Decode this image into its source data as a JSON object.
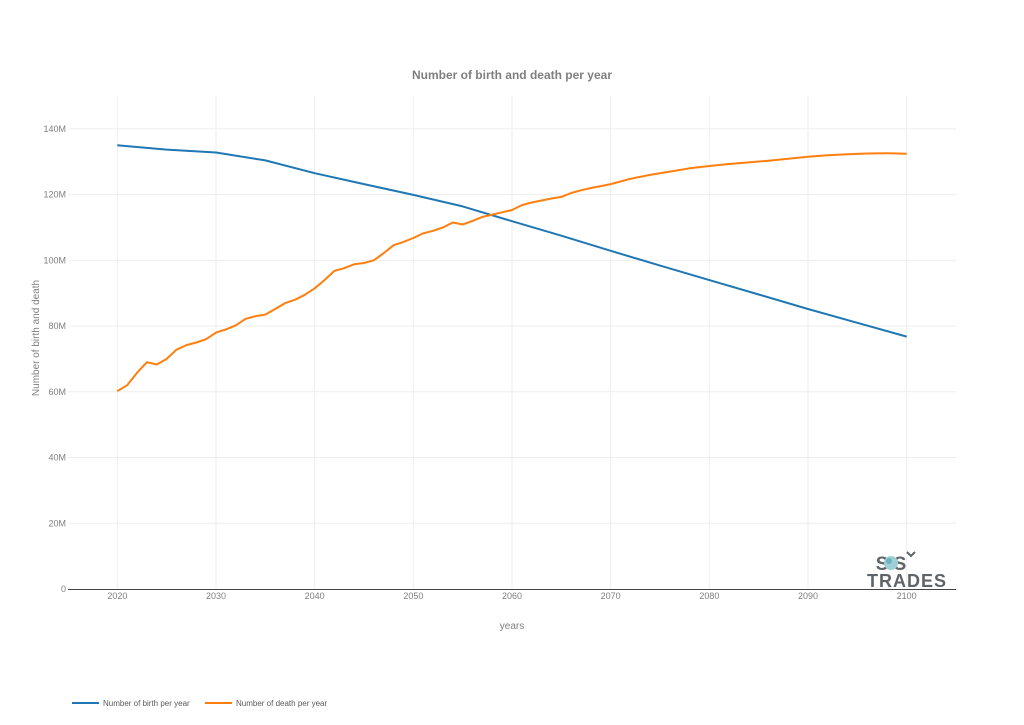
{
  "chart_data": {
    "type": "line",
    "title": "Number of birth and death per year",
    "xlabel": "years",
    "ylabel": "Number of birth and death",
    "xlim": [
      2015,
      2105
    ],
    "ylim": [
      0,
      150000000
    ],
    "x_ticks": [
      2020,
      2030,
      2040,
      2050,
      2060,
      2070,
      2080,
      2090,
      2100
    ],
    "y_ticks": [
      0,
      20000000,
      40000000,
      60000000,
      80000000,
      100000000,
      120000000,
      140000000
    ],
    "y_tick_labels": [
      "0",
      "20M",
      "40M",
      "60M",
      "80M",
      "100M",
      "120M",
      "140M"
    ],
    "grid": true,
    "legend_position": "bottom-left",
    "series": [
      {
        "name": "Number of birth per year",
        "color": "#1f77b4",
        "x": [
          2020,
          2025,
          2030,
          2035,
          2040,
          2045,
          2050,
          2055,
          2060,
          2065,
          2070,
          2075,
          2080,
          2085,
          2090,
          2095,
          2100
        ],
        "values": [
          135000000,
          133700000,
          132800000,
          130400000,
          126500000,
          123200000,
          119900000,
          116400000,
          111900000,
          107500000,
          102900000,
          98400000,
          94000000,
          89600000,
          85200000,
          81000000,
          76800000
        ]
      },
      {
        "name": "Number of death per year",
        "color": "#ff7f0e",
        "x": [
          2020,
          2021,
          2022,
          2023,
          2024,
          2025,
          2026,
          2027,
          2028,
          2029,
          2030,
          2031,
          2032,
          2033,
          2034,
          2035,
          2036,
          2037,
          2038,
          2039,
          2040,
          2041,
          2042,
          2043,
          2044,
          2045,
          2046,
          2047,
          2048,
          2049,
          2050,
          2051,
          2052,
          2053,
          2054,
          2055,
          2056,
          2057,
          2058,
          2059,
          2060,
          2061,
          2062,
          2063,
          2064,
          2065,
          2066,
          2067,
          2068,
          2069,
          2070,
          2072,
          2074,
          2076,
          2078,
          2080,
          2082,
          2084,
          2086,
          2088,
          2090,
          2092,
          2094,
          2096,
          2098,
          2100
        ],
        "values": [
          60200000,
          62000000,
          65800000,
          69000000,
          68300000,
          70000000,
          72800000,
          74200000,
          75000000,
          76000000,
          78000000,
          79000000,
          80200000,
          82200000,
          83000000,
          83500000,
          85200000,
          87000000,
          88000000,
          89500000,
          91500000,
          94000000,
          96800000,
          97600000,
          98800000,
          99200000,
          100000000,
          102200000,
          104600000,
          105600000,
          106800000,
          108200000,
          109000000,
          110000000,
          111500000,
          110900000,
          112000000,
          113200000,
          113900000,
          114600000,
          115300000,
          116800000,
          117600000,
          118200000,
          118800000,
          119300000,
          120500000,
          121300000,
          122000000,
          122600000,
          123200000,
          124800000,
          126000000,
          127000000,
          128000000,
          128700000,
          129300000,
          129800000,
          130300000,
          130900000,
          131500000,
          132000000,
          132300000,
          132500000,
          132600000,
          132400000
        ]
      }
    ]
  },
  "logo": {
    "line1": "S S",
    "line2": "TRADES"
  }
}
